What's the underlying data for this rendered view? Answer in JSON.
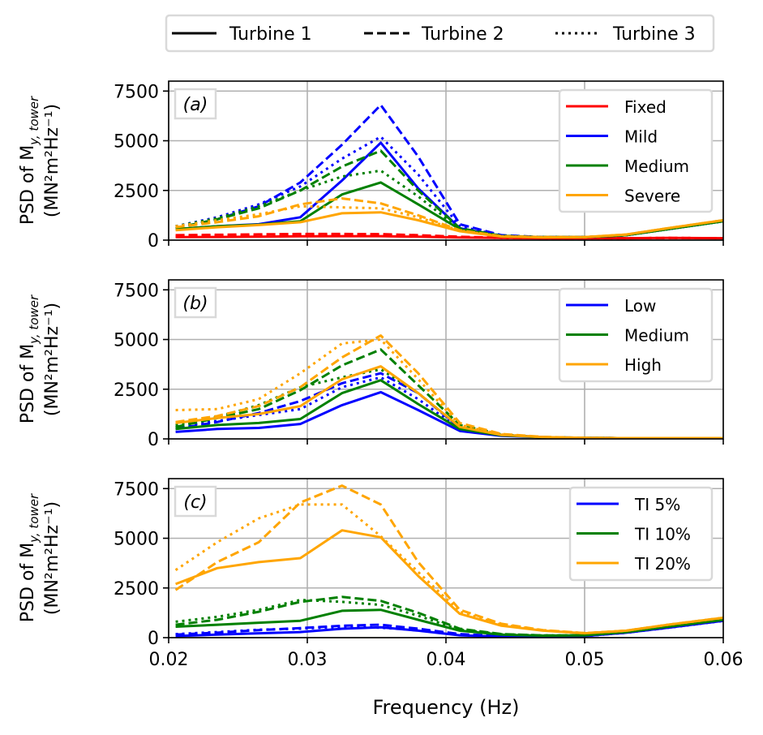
{
  "chart_data": {
    "type": "line",
    "xlabel": "Frequency (Hz)",
    "xlim": [
      0.02,
      0.06
    ],
    "xticks": [
      0.02,
      0.03,
      0.04,
      0.05,
      0.06
    ],
    "xtick_labels": [
      "0.02",
      "0.03",
      "0.04",
      "0.05",
      "0.06"
    ],
    "ylim": [
      0,
      8000
    ],
    "yticks": [
      0,
      2500,
      5000,
      7500
    ],
    "ytick_labels": [
      "0",
      "2500",
      "5000",
      "7500"
    ],
    "ylabel_line1": "PSD of M",
    "ylabel_subscript": "y, tower",
    "ylabel_line2": "(MN²m²Hz⁻¹)",
    "grid": true,
    "shared_legend": {
      "placement": "top-center",
      "entries": [
        {
          "label": "Turbine 1",
          "dash": "solid"
        },
        {
          "label": "Turbine 2",
          "dash": "dashed"
        },
        {
          "label": "Turbine 3",
          "dash": "dotted"
        }
      ]
    },
    "panels": [
      {
        "label": "(a)",
        "legend_placement": "top-right",
        "series": [
          {
            "name": "Fixed",
            "color": "#ff0000",
            "show_in_legend": true,
            "x": [
              0.0205,
              0.0235,
              0.0265,
              0.0295,
              0.0325,
              0.0353,
              0.038,
              0.041,
              0.044,
              0.047,
              0.05,
              0.053,
              0.056,
              0.06
            ],
            "turbine1": [
              150,
              160,
              170,
              190,
              200,
              200,
              170,
              130,
              110,
              100,
              100,
              100,
              110,
              100
            ],
            "turbine2": [
              250,
              270,
              290,
              310,
              310,
              300,
              250,
              170,
              120,
              100,
              100,
              100,
              110,
              100
            ],
            "turbine3": [
              200,
              220,
              240,
              260,
              260,
              250,
              210,
              150,
              110,
              100,
              100,
              100,
              110,
              100
            ]
          },
          {
            "name": "Mild",
            "color": "#0000ff",
            "show_in_legend": true,
            "x": [
              0.0205,
              0.0235,
              0.0265,
              0.0295,
              0.0325,
              0.0353,
              0.038,
              0.041,
              0.044,
              0.047,
              0.05,
              0.053,
              0.056,
              0.06
            ],
            "turbine1": [
              550,
              700,
              800,
              1150,
              3000,
              4900,
              2600,
              600,
              200,
              150,
              150,
              250,
              550,
              950
            ],
            "turbine2": [
              600,
              1050,
              1700,
              2900,
              4800,
              6800,
              4200,
              800,
              250,
              150,
              150,
              250,
              550,
              950
            ],
            "turbine3": [
              700,
              1150,
              1800,
              2700,
              4100,
              5200,
              3300,
              700,
              220,
              150,
              150,
              250,
              550,
              950
            ]
          },
          {
            "name": "Medium",
            "color": "#008000",
            "show_in_legend": true,
            "x": [
              0.0205,
              0.0235,
              0.0265,
              0.0295,
              0.0325,
              0.0353,
              0.038,
              0.041,
              0.044,
              0.047,
              0.05,
              0.053,
              0.056,
              0.06
            ],
            "turbine1": [
              550,
              700,
              780,
              950,
              2300,
              2900,
              1800,
              550,
              200,
              150,
              150,
              250,
              550,
              950
            ],
            "turbine2": [
              600,
              1050,
              1600,
              2500,
              3700,
              4500,
              2500,
              600,
              220,
              150,
              150,
              250,
              550,
              950
            ],
            "turbine3": [
              700,
              1100,
              1700,
              2500,
              3200,
              3500,
              2200,
              550,
              200,
              150,
              150,
              250,
              550,
              950
            ]
          },
          {
            "name": "Severe",
            "color": "#ffa500",
            "show_in_legend": true,
            "x": [
              0.0205,
              0.0235,
              0.0265,
              0.0295,
              0.0325,
              0.0353,
              0.038,
              0.041,
              0.044,
              0.047,
              0.05,
              0.053,
              0.056,
              0.06
            ],
            "turbine1": [
              500,
              650,
              760,
              900,
              1350,
              1400,
              1000,
              450,
              180,
              140,
              150,
              280,
              600,
              1000
            ],
            "turbine2": [
              650,
              900,
              1200,
              1800,
              2100,
              1850,
              1250,
              500,
              200,
              150,
              150,
              280,
              600,
              1000
            ],
            "turbine3": [
              700,
              1000,
              1300,
              1700,
              1650,
              1600,
              1150,
              480,
              190,
              150,
              150,
              280,
              600,
              1000
            ]
          }
        ]
      },
      {
        "label": "(b)",
        "legend_placement": "top-right",
        "series": [
          {
            "name": "Low",
            "color": "#0000ff",
            "show_in_legend": true,
            "x": [
              0.0205,
              0.0235,
              0.0265,
              0.0295,
              0.0325,
              0.0353,
              0.038,
              0.041,
              0.044,
              0.047,
              0.05,
              0.053,
              0.056,
              0.06
            ],
            "turbine1": [
              350,
              500,
              550,
              750,
              1700,
              2350,
              1450,
              400,
              150,
              80,
              50,
              40,
              40,
              40
            ],
            "turbine2": [
              500,
              850,
              1300,
              1900,
              2800,
              3300,
              2300,
              550,
              200,
              90,
              50,
              40,
              40,
              40
            ],
            "turbine3": [
              600,
              900,
              1200,
              1500,
              2600,
              3100,
              2000,
              500,
              180,
              80,
              50,
              40,
              40,
              40
            ]
          },
          {
            "name": "Medium",
            "color": "#008000",
            "show_in_legend": true,
            "x": [
              0.0205,
              0.0235,
              0.0265,
              0.0295,
              0.0325,
              0.0353,
              0.038,
              0.041,
              0.044,
              0.047,
              0.05,
              0.053,
              0.056,
              0.06
            ],
            "turbine1": [
              500,
              700,
              800,
              1000,
              2300,
              2950,
              1750,
              500,
              180,
              80,
              50,
              40,
              40,
              40
            ],
            "turbine2": [
              600,
              1050,
              1500,
              2450,
              3700,
              4500,
              2700,
              700,
              220,
              90,
              50,
              40,
              40,
              40
            ],
            "turbine3": [
              700,
              1100,
              1700,
              2600,
              3100,
              3500,
              2300,
              600,
              200,
              80,
              50,
              40,
              40,
              40
            ]
          },
          {
            "name": "High",
            "color": "#ffa500",
            "show_in_legend": true,
            "x": [
              0.0205,
              0.0235,
              0.0265,
              0.0295,
              0.0325,
              0.0353,
              0.038,
              0.041,
              0.044,
              0.047,
              0.05,
              0.053,
              0.056,
              0.06
            ],
            "turbine1": [
              800,
              1050,
              1250,
              1650,
              3000,
              3650,
              2300,
              600,
              200,
              90,
              50,
              40,
              40,
              40
            ],
            "turbine2": [
              850,
              1150,
              1650,
              2600,
              4100,
              5200,
              3300,
              800,
              250,
              100,
              50,
              40,
              40,
              40
            ],
            "turbine3": [
              1450,
              1500,
              2000,
              3300,
              4800,
              5000,
              3000,
              700,
              220,
              90,
              50,
              40,
              40,
              40
            ]
          }
        ]
      },
      {
        "label": "(c)",
        "legend_placement": "top-right",
        "series": [
          {
            "name": "TI 5%",
            "color": "#0000ff",
            "show_in_legend": true,
            "x": [
              0.0205,
              0.0235,
              0.0265,
              0.0295,
              0.0325,
              0.0353,
              0.038,
              0.041,
              0.044,
              0.047,
              0.05,
              0.053,
              0.056,
              0.06
            ],
            "turbine1": [
              80,
              150,
              220,
              280,
              450,
              520,
              350,
              120,
              50,
              40,
              80,
              250,
              500,
              850
            ],
            "turbine2": [
              150,
              250,
              380,
              480,
              600,
              650,
              450,
              180,
              80,
              60,
              80,
              250,
              500,
              850
            ],
            "turbine3": [
              180,
              280,
              400,
              450,
              550,
              500,
              380,
              150,
              70,
              50,
              80,
              250,
              500,
              850
            ]
          },
          {
            "name": "TI 10%",
            "color": "#008000",
            "show_in_legend": true,
            "x": [
              0.0205,
              0.0235,
              0.0265,
              0.0295,
              0.0325,
              0.0353,
              0.038,
              0.041,
              0.044,
              0.047,
              0.05,
              0.053,
              0.056,
              0.06
            ],
            "turbine1": [
              550,
              650,
              750,
              850,
              1350,
              1400,
              900,
              350,
              150,
              100,
              120,
              280,
              550,
              900
            ],
            "turbine2": [
              650,
              900,
              1300,
              1800,
              2050,
              1850,
              1250,
              450,
              180,
              110,
              120,
              280,
              550,
              900
            ],
            "turbine3": [
              800,
              1050,
              1400,
              1900,
              1800,
              1650,
              1100,
              400,
              170,
              110,
              120,
              280,
              550,
              900
            ]
          },
          {
            "name": "TI 20%",
            "color": "#ffa500",
            "show_in_legend": true,
            "x": [
              0.0205,
              0.0235,
              0.0265,
              0.0295,
              0.0325,
              0.0353,
              0.038,
              0.041,
              0.044,
              0.047,
              0.05,
              0.053,
              0.056,
              0.06
            ],
            "turbine1": [
              2700,
              3500,
              3800,
              4000,
              5400,
              5050,
              3100,
              1200,
              600,
              350,
              220,
              350,
              650,
              1000
            ],
            "turbine2": [
              2400,
              3800,
              4800,
              6800,
              7650,
              6700,
              3800,
              1400,
              700,
              380,
              230,
              350,
              650,
              1000
            ],
            "turbine3": [
              3400,
              4800,
              6000,
              6700,
              6700,
              5100,
              3300,
              1300,
              650,
              370,
              230,
              350,
              650,
              1000
            ]
          }
        ]
      }
    ]
  }
}
